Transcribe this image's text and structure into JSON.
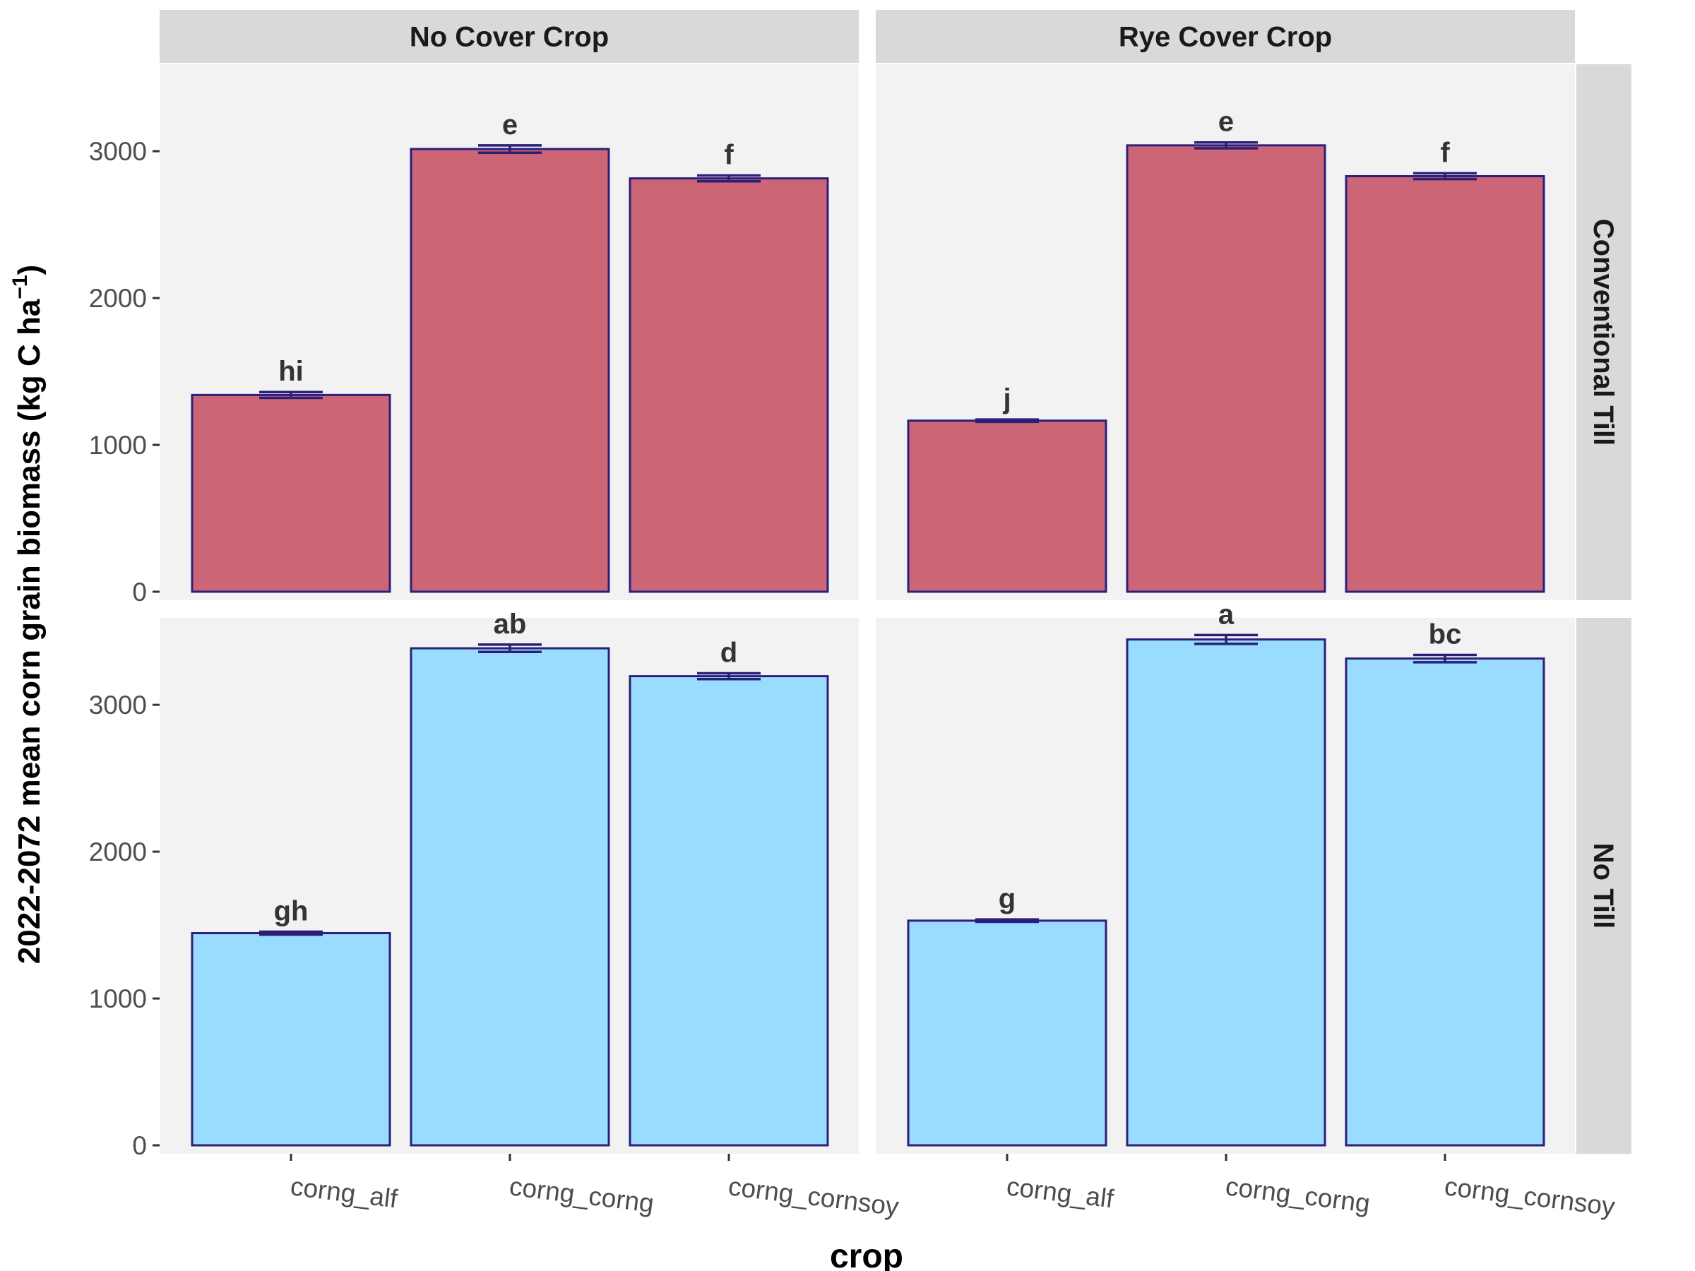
{
  "chart_data": {
    "type": "bar",
    "facet_columns": [
      "No Cover Crop",
      "Rye Cover Crop"
    ],
    "facet_rows": [
      "Conventional Till",
      "No Till"
    ],
    "categories": [
      "corng_alf",
      "corng_corng",
      "corng_cornsoy"
    ],
    "xlabel": "crop",
    "ylabel": "2022-2072 mean corn grain biomass (kg C ha",
    "ylabel_superscript": "−1",
    "ylabel_close": ")",
    "yticks": [
      0,
      1000,
      2000,
      3000
    ],
    "ylim": [
      0,
      3650
    ],
    "row_colors": {
      "Conventional Till": "#cc6677",
      "No Till": "#9adcff"
    },
    "outline_color": "#2b1f7a",
    "panels": [
      {
        "column": "No Cover Crop",
        "row": "Conventional Till",
        "values": [
          1340,
          3015,
          2815
        ],
        "errors": [
          20,
          25,
          20
        ],
        "labels": [
          "hi",
          "e",
          "f"
        ]
      },
      {
        "column": "Rye Cover Crop",
        "row": "Conventional Till",
        "values": [
          1165,
          3040,
          2830
        ],
        "errors": [
          8,
          20,
          20
        ],
        "labels": [
          "j",
          "e",
          "f"
        ]
      },
      {
        "column": "No Cover Crop",
        "row": "No Till",
        "values": [
          1445,
          3385,
          3195
        ],
        "errors": [
          10,
          25,
          20
        ],
        "labels": [
          "gh",
          "ab",
          "d"
        ]
      },
      {
        "column": "Rye Cover Crop",
        "row": "No Till",
        "values": [
          1530,
          3445,
          3315
        ],
        "errors": [
          8,
          30,
          25
        ],
        "labels": [
          "g",
          "a",
          "bc"
        ]
      }
    ]
  }
}
